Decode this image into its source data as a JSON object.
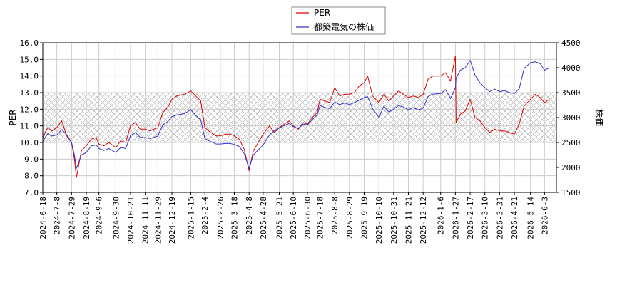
{
  "chart_data": {
    "type": "line",
    "title": "",
    "grid": true,
    "legend_placement": "top-center",
    "y_left": {
      "label": "PER",
      "min": 7.0,
      "max": 16.0,
      "ticks": [
        "7.0",
        "8.0",
        "9.0",
        "10.0",
        "11.0",
        "12.0",
        "13.0",
        "14.0",
        "15.0",
        "16.0"
      ]
    },
    "y_right": {
      "label": "株価",
      "min": 1500,
      "max": 4500,
      "ticks": [
        "1500",
        "2000",
        "2500",
        "3000",
        "3500",
        "4000",
        "4500"
      ]
    },
    "hatched_band": {
      "from": 10.0,
      "to": 13.0,
      "axis": "left"
    },
    "x_ticks": [
      "2024-6-18",
      "2024-7-8",
      "2024-7-29",
      "2024-8-19",
      "2024-9-6",
      "2024-9-30",
      "2024-10-21",
      "2024-11-11",
      "2024-11-29",
      "2024-12-19",
      "2025-1-15",
      "2025-2-4",
      "2025-2-26",
      "2025-3-18",
      "2025-4-8",
      "2025-4-28",
      "2025-5-21",
      "2025-6-10",
      "2025-6-30",
      "2025-7-18",
      "2025-8-8",
      "2025-8-29",
      "2025-9-19",
      "2025-10-10",
      "2025-10-31",
      "2025-11-21",
      "2025-12-12",
      "2026-1-6",
      "2026-1-27",
      "2026-2-17",
      "2026-3-10",
      "2026-3-31",
      "2026-4-21",
      "2026-5-14",
      "2026-6-3"
    ],
    "series": [
      {
        "name": "PER",
        "color": "#dd0000",
        "axis": "left",
        "points": [
          [
            "2024-6-18",
            10.3
          ],
          [
            "2024-6-25",
            10.9
          ],
          [
            "2024-7-1",
            10.7
          ],
          [
            "2024-7-8",
            10.9
          ],
          [
            "2024-7-15",
            11.3
          ],
          [
            "2024-7-22",
            10.4
          ],
          [
            "2024-7-29",
            10.0
          ],
          [
            "2024-8-2",
            9.0
          ],
          [
            "2024-8-5",
            7.9
          ],
          [
            "2024-8-12",
            9.5
          ],
          [
            "2024-8-19",
            9.8
          ],
          [
            "2024-8-26",
            10.2
          ],
          [
            "2024-9-2",
            10.3
          ],
          [
            "2024-9-6",
            9.9
          ],
          [
            "2024-9-13",
            9.8
          ],
          [
            "2024-9-20",
            10.0
          ],
          [
            "2024-9-30",
            9.7
          ],
          [
            "2024-10-7",
            10.1
          ],
          [
            "2024-10-14",
            10.0
          ],
          [
            "2024-10-21",
            11.0
          ],
          [
            "2024-10-28",
            11.2
          ],
          [
            "2024-11-4",
            10.8
          ],
          [
            "2024-11-11",
            10.8
          ],
          [
            "2024-11-18",
            10.7
          ],
          [
            "2024-11-29",
            10.9
          ],
          [
            "2024-12-6",
            11.8
          ],
          [
            "2024-12-13",
            12.1
          ],
          [
            "2024-12-19",
            12.6
          ],
          [
            "2024-12-26",
            12.8
          ],
          [
            "2025-1-6",
            12.9
          ],
          [
            "2025-1-15",
            13.1
          ],
          [
            "2025-1-22",
            12.8
          ],
          [
            "2025-1-29",
            12.5
          ],
          [
            "2025-2-4",
            10.9
          ],
          [
            "2025-2-12",
            10.6
          ],
          [
            "2025-2-20",
            10.4
          ],
          [
            "2025-2-26",
            10.4
          ],
          [
            "2025-3-5",
            10.5
          ],
          [
            "2025-3-12",
            10.5
          ],
          [
            "2025-3-18",
            10.4
          ],
          [
            "2025-3-25",
            10.2
          ],
          [
            "2025-4-1",
            9.6
          ],
          [
            "2025-4-8",
            8.3
          ],
          [
            "2025-4-14",
            9.5
          ],
          [
            "2025-4-21",
            10.0
          ],
          [
            "2025-4-28",
            10.5
          ],
          [
            "2025-5-7",
            11.0
          ],
          [
            "2025-5-14",
            10.6
          ],
          [
            "2025-5-21",
            10.9
          ],
          [
            "2025-5-28",
            11.1
          ],
          [
            "2025-6-4",
            11.3
          ],
          [
            "2025-6-10",
            11.0
          ],
          [
            "2025-6-17",
            10.8
          ],
          [
            "2025-6-24",
            11.2
          ],
          [
            "2025-6-30",
            11.1
          ],
          [
            "2025-7-7",
            11.5
          ],
          [
            "2025-7-14",
            11.8
          ],
          [
            "2025-7-18",
            12.6
          ],
          [
            "2025-7-25",
            12.5
          ],
          [
            "2025-8-1",
            12.4
          ],
          [
            "2025-8-8",
            13.3
          ],
          [
            "2025-8-15",
            12.8
          ],
          [
            "2025-8-22",
            12.9
          ],
          [
            "2025-8-29",
            12.9
          ],
          [
            "2025-9-5",
            13.0
          ],
          [
            "2025-9-12",
            13.4
          ],
          [
            "2025-9-19",
            13.6
          ],
          [
            "2025-9-24",
            14.0
          ],
          [
            "2025-10-1",
            12.8
          ],
          [
            "2025-10-10",
            12.4
          ],
          [
            "2025-10-17",
            12.9
          ],
          [
            "2025-10-24",
            12.5
          ],
          [
            "2025-10-31",
            12.8
          ],
          [
            "2025-11-7",
            13.1
          ],
          [
            "2025-11-14",
            12.9
          ],
          [
            "2025-11-21",
            12.7
          ],
          [
            "2025-11-28",
            12.8
          ],
          [
            "2025-12-5",
            12.7
          ],
          [
            "2025-12-12",
            12.9
          ],
          [
            "2025-12-19",
            13.8
          ],
          [
            "2025-12-26",
            14.0
          ],
          [
            "2026-1-6",
            14.0
          ],
          [
            "2026-1-13",
            14.2
          ],
          [
            "2026-1-20",
            13.7
          ],
          [
            "2026-1-27",
            15.2
          ],
          [
            "2026-1-28",
            11.2
          ],
          [
            "2026-2-3",
            11.7
          ],
          [
            "2026-2-10",
            11.9
          ],
          [
            "2026-2-17",
            12.6
          ],
          [
            "2026-2-24",
            11.5
          ],
          [
            "2026-3-3",
            11.3
          ],
          [
            "2026-3-10",
            10.9
          ],
          [
            "2026-3-17",
            10.6
          ],
          [
            "2026-3-24",
            10.8
          ],
          [
            "2026-3-31",
            10.7
          ],
          [
            "2026-4-7",
            10.7
          ],
          [
            "2026-4-14",
            10.6
          ],
          [
            "2026-4-21",
            10.5
          ],
          [
            "2026-4-28",
            11.1
          ],
          [
            "2026-5-5",
            12.2
          ],
          [
            "2026-5-14",
            12.6
          ],
          [
            "2026-5-21",
            12.9
          ],
          [
            "2026-5-28",
            12.7
          ],
          [
            "2026-6-3",
            12.4
          ],
          [
            "2026-6-10",
            12.6
          ]
        ]
      },
      {
        "name": "都築電気の株価",
        "color": "#3333cc",
        "axis": "right",
        "points": [
          [
            "2024-6-18",
            2520
          ],
          [
            "2024-6-25",
            2680
          ],
          [
            "2024-7-1",
            2630
          ],
          [
            "2024-7-8",
            2650
          ],
          [
            "2024-7-15",
            2760
          ],
          [
            "2024-7-22",
            2660
          ],
          [
            "2024-7-29",
            2500
          ],
          [
            "2024-8-2",
            2250
          ],
          [
            "2024-8-5",
            1980
          ],
          [
            "2024-8-12",
            2250
          ],
          [
            "2024-8-19",
            2300
          ],
          [
            "2024-8-26",
            2430
          ],
          [
            "2024-9-2",
            2450
          ],
          [
            "2024-9-6",
            2380
          ],
          [
            "2024-9-13",
            2340
          ],
          [
            "2024-9-20",
            2380
          ],
          [
            "2024-9-30",
            2300
          ],
          [
            "2024-10-7",
            2400
          ],
          [
            "2024-10-14",
            2380
          ],
          [
            "2024-10-21",
            2640
          ],
          [
            "2024-10-28",
            2700
          ],
          [
            "2024-11-4",
            2600
          ],
          [
            "2024-11-11",
            2600
          ],
          [
            "2024-11-18",
            2580
          ],
          [
            "2024-11-29",
            2630
          ],
          [
            "2024-12-6",
            2850
          ],
          [
            "2024-12-13",
            2920
          ],
          [
            "2024-12-19",
            3020
          ],
          [
            "2024-12-26",
            3050
          ],
          [
            "2025-1-6",
            3080
          ],
          [
            "2025-1-15",
            3160
          ],
          [
            "2025-1-22",
            3040
          ],
          [
            "2025-1-29",
            2960
          ],
          [
            "2025-2-4",
            2580
          ],
          [
            "2025-2-12",
            2520
          ],
          [
            "2025-2-20",
            2470
          ],
          [
            "2025-2-26",
            2470
          ],
          [
            "2025-3-5",
            2480
          ],
          [
            "2025-3-12",
            2480
          ],
          [
            "2025-3-18",
            2460
          ],
          [
            "2025-3-25",
            2420
          ],
          [
            "2025-4-1",
            2280
          ],
          [
            "2025-4-8",
            1980
          ],
          [
            "2025-4-14",
            2250
          ],
          [
            "2025-4-21",
            2350
          ],
          [
            "2025-4-28",
            2450
          ],
          [
            "2025-5-7",
            2650
          ],
          [
            "2025-5-14",
            2740
          ],
          [
            "2025-5-21",
            2790
          ],
          [
            "2025-5-28",
            2840
          ],
          [
            "2025-6-4",
            2880
          ],
          [
            "2025-6-10",
            2820
          ],
          [
            "2025-6-17",
            2780
          ],
          [
            "2025-6-24",
            2870
          ],
          [
            "2025-6-30",
            2850
          ],
          [
            "2025-7-7",
            2960
          ],
          [
            "2025-7-14",
            3050
          ],
          [
            "2025-7-18",
            3240
          ],
          [
            "2025-7-25",
            3200
          ],
          [
            "2025-8-1",
            3180
          ],
          [
            "2025-8-8",
            3310
          ],
          [
            "2025-8-15",
            3260
          ],
          [
            "2025-8-22",
            3290
          ],
          [
            "2025-8-29",
            3260
          ],
          [
            "2025-9-5",
            3300
          ],
          [
            "2025-9-12",
            3350
          ],
          [
            "2025-9-19",
            3400
          ],
          [
            "2025-9-24",
            3420
          ],
          [
            "2025-10-1",
            3180
          ],
          [
            "2025-10-10",
            3000
          ],
          [
            "2025-10-17",
            3230
          ],
          [
            "2025-10-24",
            3110
          ],
          [
            "2025-10-31",
            3170
          ],
          [
            "2025-11-7",
            3240
          ],
          [
            "2025-11-14",
            3210
          ],
          [
            "2025-11-21",
            3160
          ],
          [
            "2025-11-28",
            3200
          ],
          [
            "2025-12-5",
            3150
          ],
          [
            "2025-12-12",
            3190
          ],
          [
            "2025-12-19",
            3420
          ],
          [
            "2025-12-26",
            3470
          ],
          [
            "2026-1-6",
            3480
          ],
          [
            "2026-1-13",
            3560
          ],
          [
            "2026-1-20",
            3380
          ],
          [
            "2026-1-27",
            3600
          ],
          [
            "2026-1-28",
            3790
          ],
          [
            "2026-2-3",
            3950
          ],
          [
            "2026-2-10",
            4000
          ],
          [
            "2026-2-17",
            4150
          ],
          [
            "2026-2-24",
            3850
          ],
          [
            "2026-3-3",
            3700
          ],
          [
            "2026-3-10",
            3600
          ],
          [
            "2026-3-17",
            3520
          ],
          [
            "2026-3-24",
            3570
          ],
          [
            "2026-3-31",
            3520
          ],
          [
            "2026-4-7",
            3540
          ],
          [
            "2026-4-14",
            3500
          ],
          [
            "2026-4-21",
            3480
          ],
          [
            "2026-4-28",
            3580
          ],
          [
            "2026-5-5",
            3990
          ],
          [
            "2026-5-14",
            4100
          ],
          [
            "2026-5-21",
            4120
          ],
          [
            "2026-5-28",
            4080
          ],
          [
            "2026-6-3",
            3950
          ],
          [
            "2026-6-10",
            4000
          ]
        ]
      }
    ]
  }
}
